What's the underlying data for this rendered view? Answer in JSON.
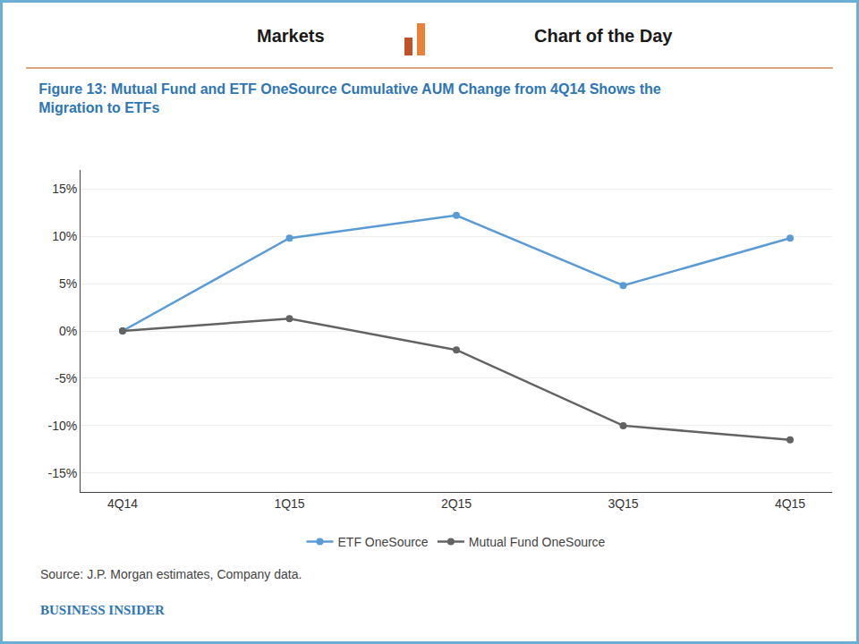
{
  "chart_data": {
    "type": "line",
    "title": "Figure 13: Mutual Fund and ETF OneSource Cumulative AUM Change from 4Q14 Shows the\nMigration to ETFs",
    "annotations": [
      "Markets",
      "Chart of the Day",
      "Source: J.P. Morgan estimates, Company data.",
      "BUSINESS INSIDER"
    ],
    "categories": [
      "4Q14",
      "1Q15",
      "2Q15",
      "3Q15",
      "4Q15"
    ],
    "series": [
      {
        "name": "ETF OneSource",
        "color": "#5B9BD5",
        "marker": "circle",
        "values": [
          0.0,
          9.8,
          12.2,
          4.8,
          9.8
        ]
      },
      {
        "name": "Mutual Fund OneSource",
        "color": "#636363",
        "marker": "circle",
        "values": [
          0.0,
          1.3,
          -2.0,
          -10.0,
          -11.5
        ]
      }
    ],
    "ylim": [
      -17,
      17
    ],
    "yticks": [
      {
        "value": -15,
        "label": "-15%"
      },
      {
        "value": -10,
        "label": "-10%"
      },
      {
        "value": -5,
        "label": "-5%"
      },
      {
        "value": 0,
        "label": "0%"
      },
      {
        "value": 5,
        "label": "5%"
      },
      {
        "value": 10,
        "label": "10%"
      },
      {
        "value": 15,
        "label": "15%"
      }
    ],
    "grid": true,
    "legend": "bottom"
  }
}
